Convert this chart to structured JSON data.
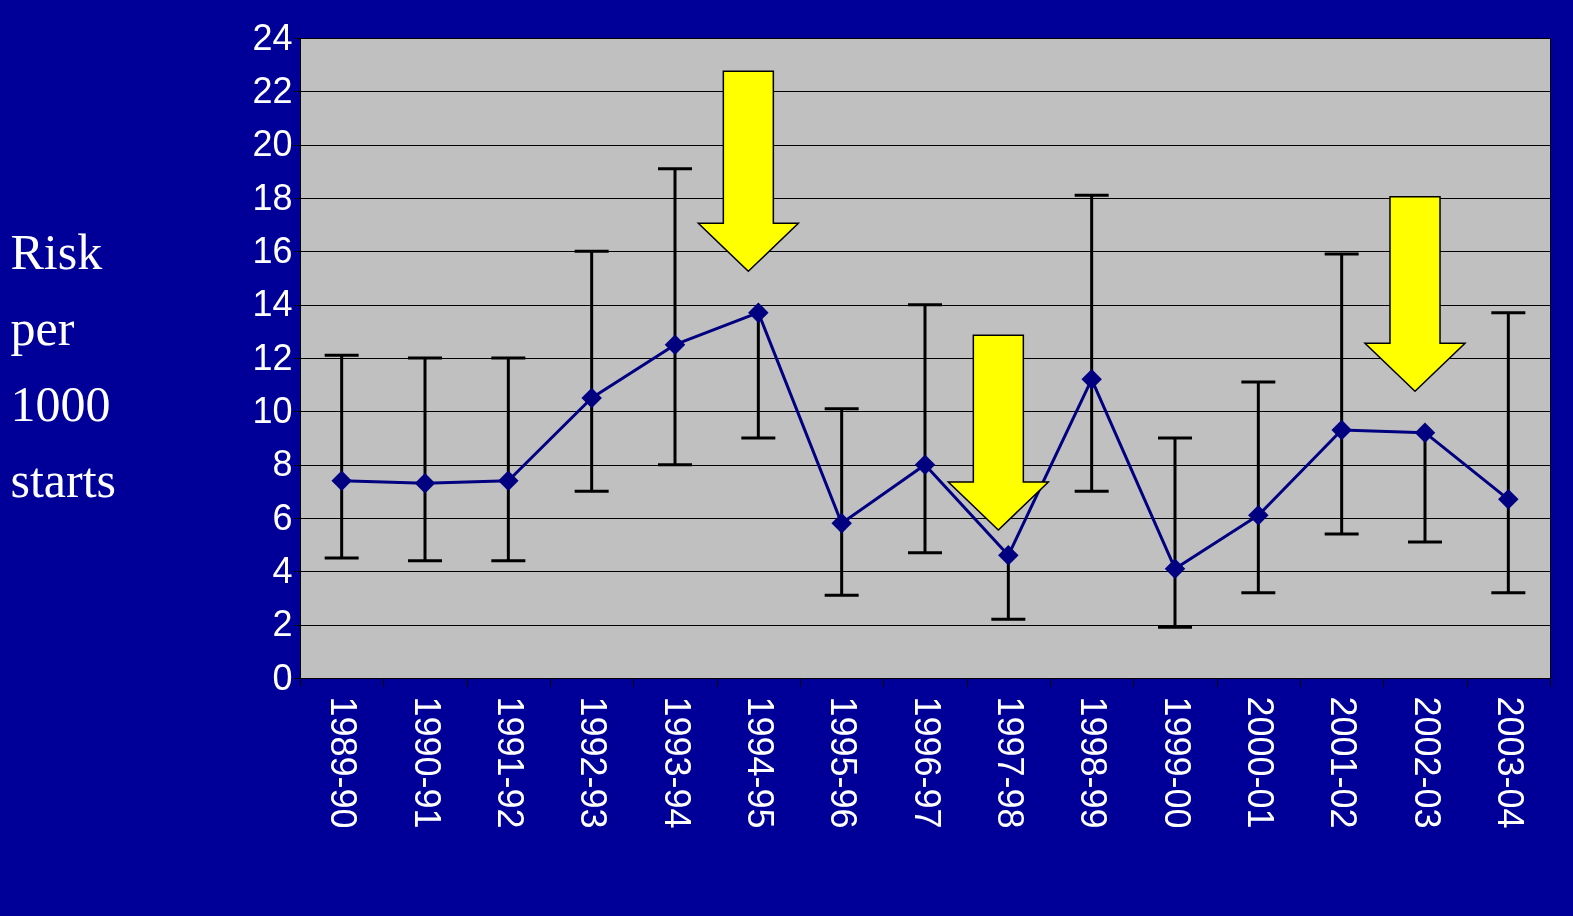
{
  "chart_data": {
    "type": "line",
    "ylabel": "Risk per 1000 starts",
    "categories": [
      "1989-90",
      "1990-91",
      "1991-92",
      "1992-93",
      "1993-94",
      "1994-95",
      "1995-96",
      "1996-97",
      "1997-98",
      "1998-99",
      "1999-00",
      "2000-01",
      "2001-02",
      "2002-03",
      "2003-04"
    ],
    "series": [
      {
        "color": "#000080",
        "values": [
          7.4,
          7.3,
          7.4,
          10.5,
          12.5,
          13.7,
          5.8,
          8.0,
          4.6,
          11.2,
          4.1,
          6.1,
          9.3,
          9.2,
          6.7
        ],
        "errors": [
          [
            4.5,
            12.1
          ],
          [
            4.4,
            12.0
          ],
          [
            4.4,
            12.0
          ],
          [
            7.0,
            16.0
          ],
          [
            8.0,
            19.1
          ],
          [
            9.0,
            13.7
          ],
          [
            3.1,
            10.1
          ],
          [
            4.7,
            14.0
          ],
          [
            2.2,
            4.6
          ],
          [
            7.0,
            18.1
          ],
          [
            1.9,
            9.0
          ],
          [
            3.2,
            11.1
          ],
          [
            5.4,
            15.9
          ],
          [
            5.1,
            9.2
          ],
          [
            3.2,
            13.7
          ]
        ]
      }
    ],
    "ylim": [
      0,
      24
    ],
    "yticks": [
      0,
      2,
      4,
      6,
      8,
      10,
      12,
      14,
      16,
      18,
      20,
      22,
      24
    ],
    "grid": "y",
    "marker": "diamond",
    "line_style": "solid",
    "legend": false
  }
}
